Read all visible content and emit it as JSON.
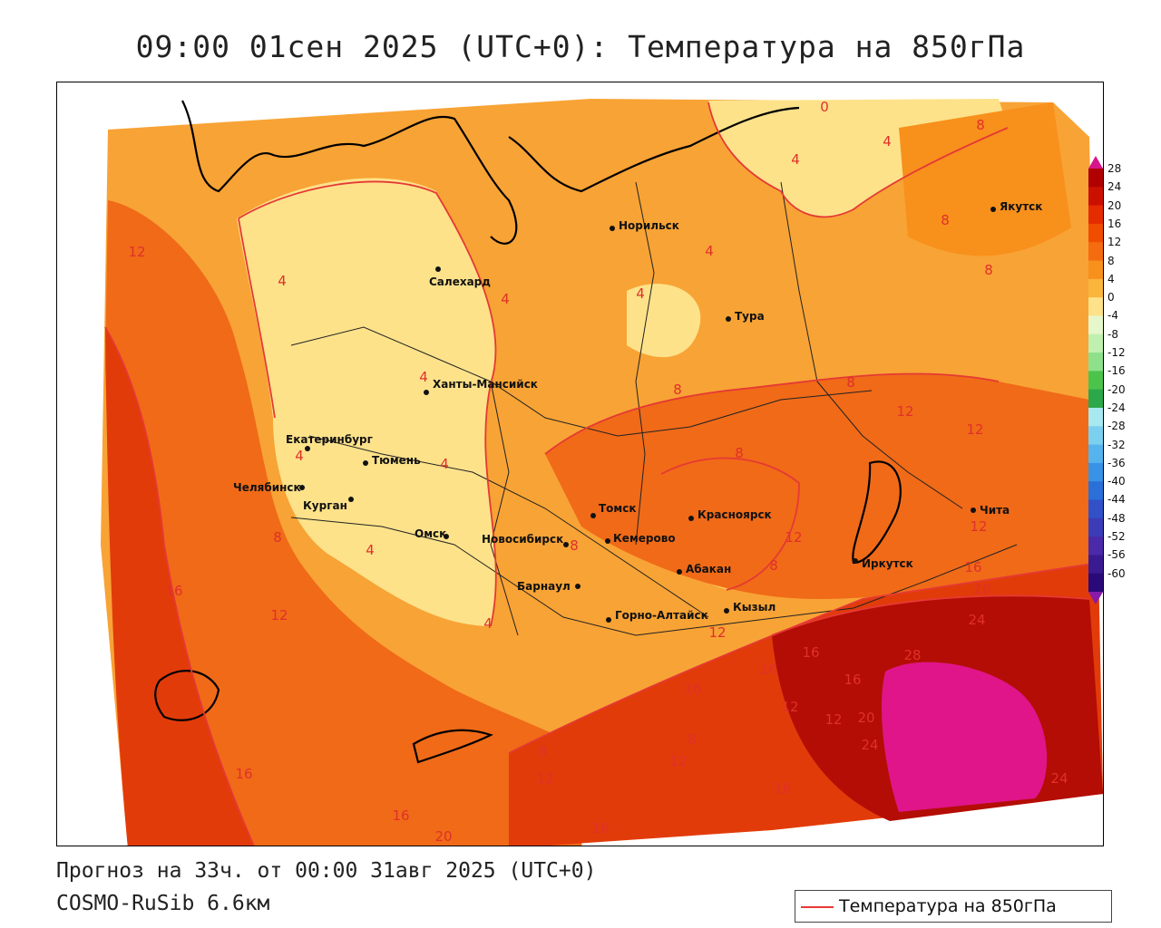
{
  "title": "09:00 01сен 2025 (UTC+0): Температура на 850гПа",
  "forecast_line": "Прогноз на 33ч. от 00:00 31авг 2025 (UTC+0)",
  "model_line": "COSMO-RuSib 6.6км",
  "legend": {
    "label": "Температура на 850гПа",
    "line_color": "#e53935"
  },
  "colorbar": {
    "labels": [
      "28",
      "24",
      "20",
      "16",
      "12",
      "8",
      "4",
      "0",
      "-4",
      "-8",
      "-12",
      "-16",
      "-20",
      "-24",
      "-28",
      "-32",
      "-36",
      "-40",
      "-44",
      "-48",
      "-52",
      "-56",
      "-60"
    ],
    "colors": [
      "#b00000",
      "#cc1000",
      "#e52b00",
      "#f04d00",
      "#f56b10",
      "#f8901c",
      "#fab53c",
      "#fde28a",
      "#e6f7cc",
      "#bff0b0",
      "#8ee08a",
      "#4cc44c",
      "#2aa84a",
      "#a8e8f0",
      "#7cd0ef",
      "#55b4ee",
      "#3892e6",
      "#2a70d8",
      "#3250c8",
      "#3c3cb8",
      "#4a2aa8",
      "#3a1a90",
      "#2a0a78"
    ],
    "top_color": "#d6168a",
    "bottom_color": "#8a1aa8"
  },
  "cities": [
    {
      "name": "Якутск"
    },
    {
      "name": "Норильск"
    },
    {
      "name": "Салехард"
    },
    {
      "name": "Тура"
    },
    {
      "name": "Ханты-Мансийск"
    },
    {
      "name": "Екатеринбург"
    },
    {
      "name": "Тюмень"
    },
    {
      "name": "Челябинск"
    },
    {
      "name": "Курган"
    },
    {
      "name": "Омск"
    },
    {
      "name": "Томск"
    },
    {
      "name": "Красноярск"
    },
    {
      "name": "Новосибирск"
    },
    {
      "name": "Кемерово"
    },
    {
      "name": "Барнаул"
    },
    {
      "name": "Абакан"
    },
    {
      "name": "Иркутск"
    },
    {
      "name": "Чита"
    },
    {
      "name": "Горно-Алтайск"
    },
    {
      "name": "Кызыл"
    }
  ],
  "isoline_labels": [
    "0",
    "4",
    "8",
    "12",
    "16",
    "20",
    "24",
    "28"
  ]
}
